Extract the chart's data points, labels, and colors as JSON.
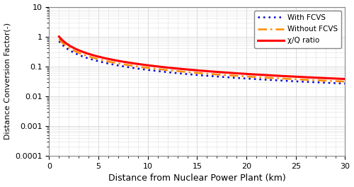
{
  "title": "",
  "xlabel": "Distance from Nuclear Power Plant (km)",
  "ylabel": "Distance Conversion Factor(-)",
  "xlim": [
    0,
    30
  ],
  "ylim_log": [
    0.0001,
    10
  ],
  "x_ticks": [
    0,
    5,
    10,
    15,
    20,
    25,
    30
  ],
  "legend": [
    {
      "label": "χ/Q ratio",
      "color": "#FF0000",
      "linestyle": "solid",
      "linewidth": 2.2
    },
    {
      "label": "Without FCVS",
      "color": "#FF8C00",
      "linestyle": "dashdot",
      "linewidth": 1.8
    },
    {
      "label": "With FCVS",
      "color": "#0000CD",
      "linestyle": "dotted",
      "linewidth": 1.8
    }
  ],
  "chi_q_at_1": 1.0,
  "chi_q_at_30": 0.038,
  "wof_factor": 0.82,
  "wf_factor": 0.7,
  "background_color": "#ffffff",
  "grid_color": "#cccccc",
  "grid_minor_color": "#e0e0e0"
}
